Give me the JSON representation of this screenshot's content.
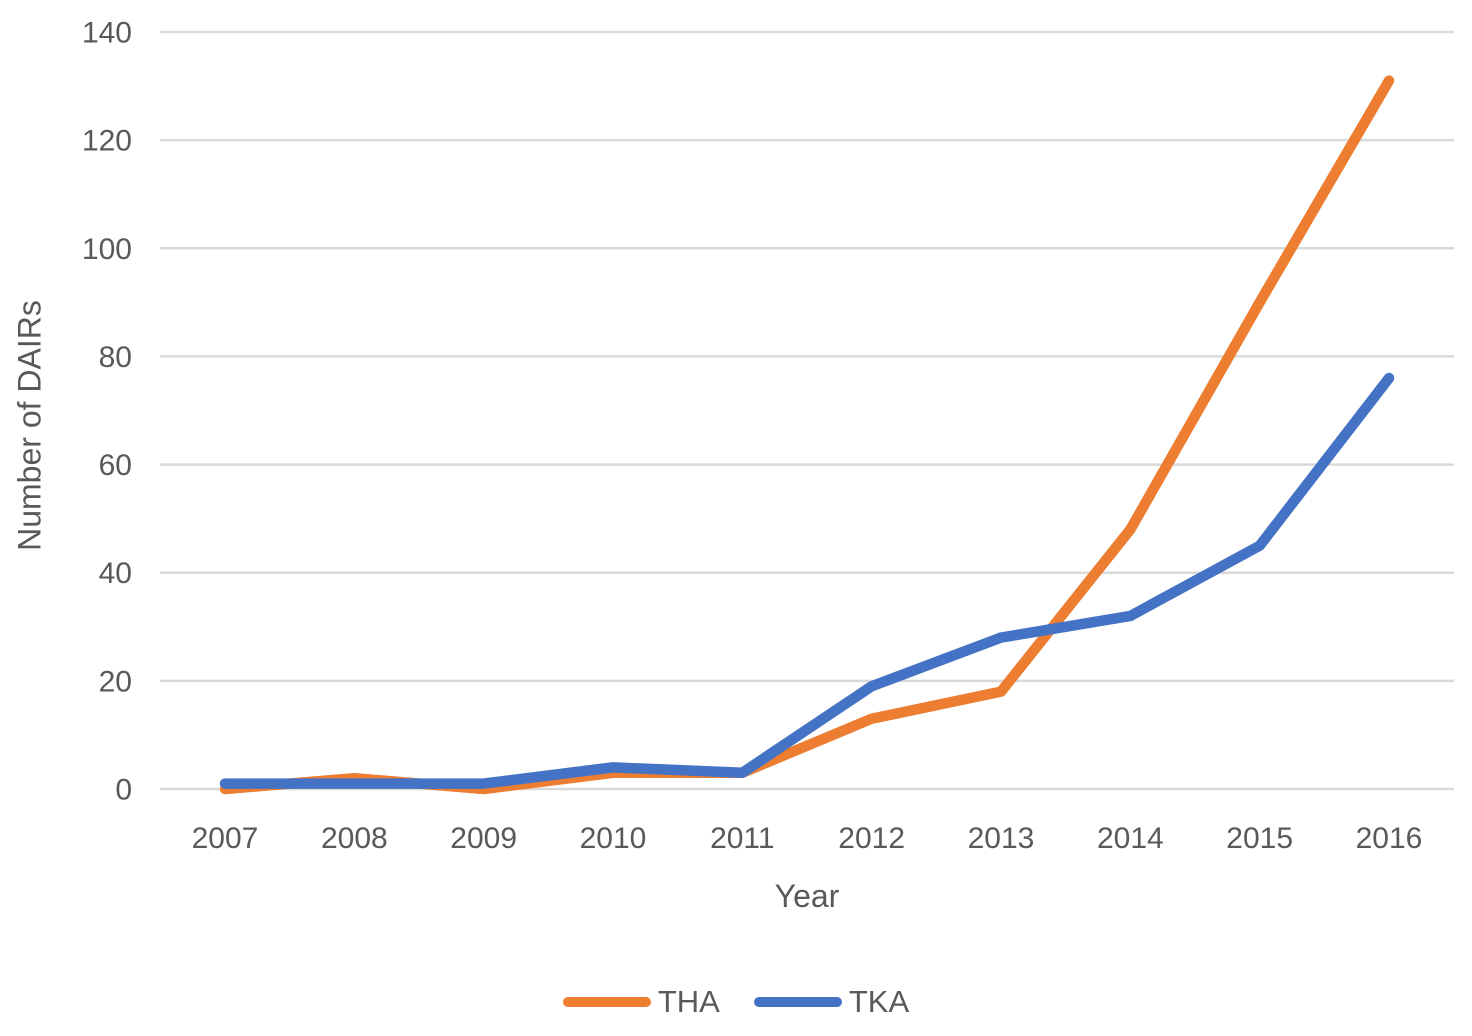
{
  "chart_data": {
    "type": "line",
    "title": "",
    "xlabel": "Year",
    "ylabel": "Number of DAIRs",
    "categories": [
      "2007",
      "2008",
      "2009",
      "2010",
      "2011",
      "2012",
      "2013",
      "2014",
      "2015",
      "2016"
    ],
    "series": [
      {
        "name": "THA",
        "color": "#ED7D31",
        "values": [
          0,
          2,
          0,
          3,
          3,
          13,
          18,
          48,
          90,
          131
        ]
      },
      {
        "name": "TKA",
        "color": "#4472C4",
        "values": [
          1,
          1,
          1,
          4,
          3,
          19,
          28,
          32,
          45,
          76
        ]
      }
    ],
    "ylim": [
      0,
      140
    ],
    "yticks": [
      0,
      20,
      40,
      60,
      80,
      100,
      120,
      140
    ],
    "grid": "horizontal",
    "gridline_color": "#D9D9D9",
    "text_color": "#595959",
    "line_width": 10.5,
    "legend_position": "bottom"
  }
}
